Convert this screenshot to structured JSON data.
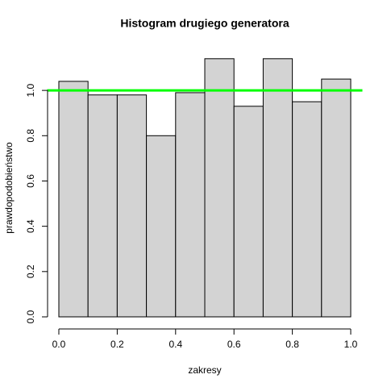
{
  "chart_data": {
    "type": "histogram",
    "title": "Histogram drugiego generatora",
    "x_label": "zakresy",
    "y_label": "prawdopodobieństwo",
    "bins": [
      0.0,
      0.1,
      0.2,
      0.3,
      0.4,
      0.5,
      0.6,
      0.7,
      0.8,
      0.9,
      1.0
    ],
    "values": [
      1.04,
      0.98,
      0.98,
      0.8,
      0.99,
      1.14,
      0.93,
      1.14,
      0.95,
      1.05
    ],
    "color": "#d3d3d3",
    "edge_color": "#000000",
    "xlim": [
      -0.04,
      1.04
    ],
    "ylim": [
      -0.0456,
      1.1856
    ],
    "xticks": [
      {
        "value": 0,
        "label": "0.0"
      },
      0.2,
      0.4,
      0.6,
      0.8,
      {
        "value": 1,
        "label": "1.0"
      }
    ],
    "yticks": [
      {
        "value": 0,
        "label": "0.0"
      },
      0.2,
      0.4,
      0.6,
      0.8,
      {
        "value": 1,
        "label": "1.0"
      }
    ],
    "reference_line": {
      "value": 1,
      "color": "#00ff00"
    }
  }
}
